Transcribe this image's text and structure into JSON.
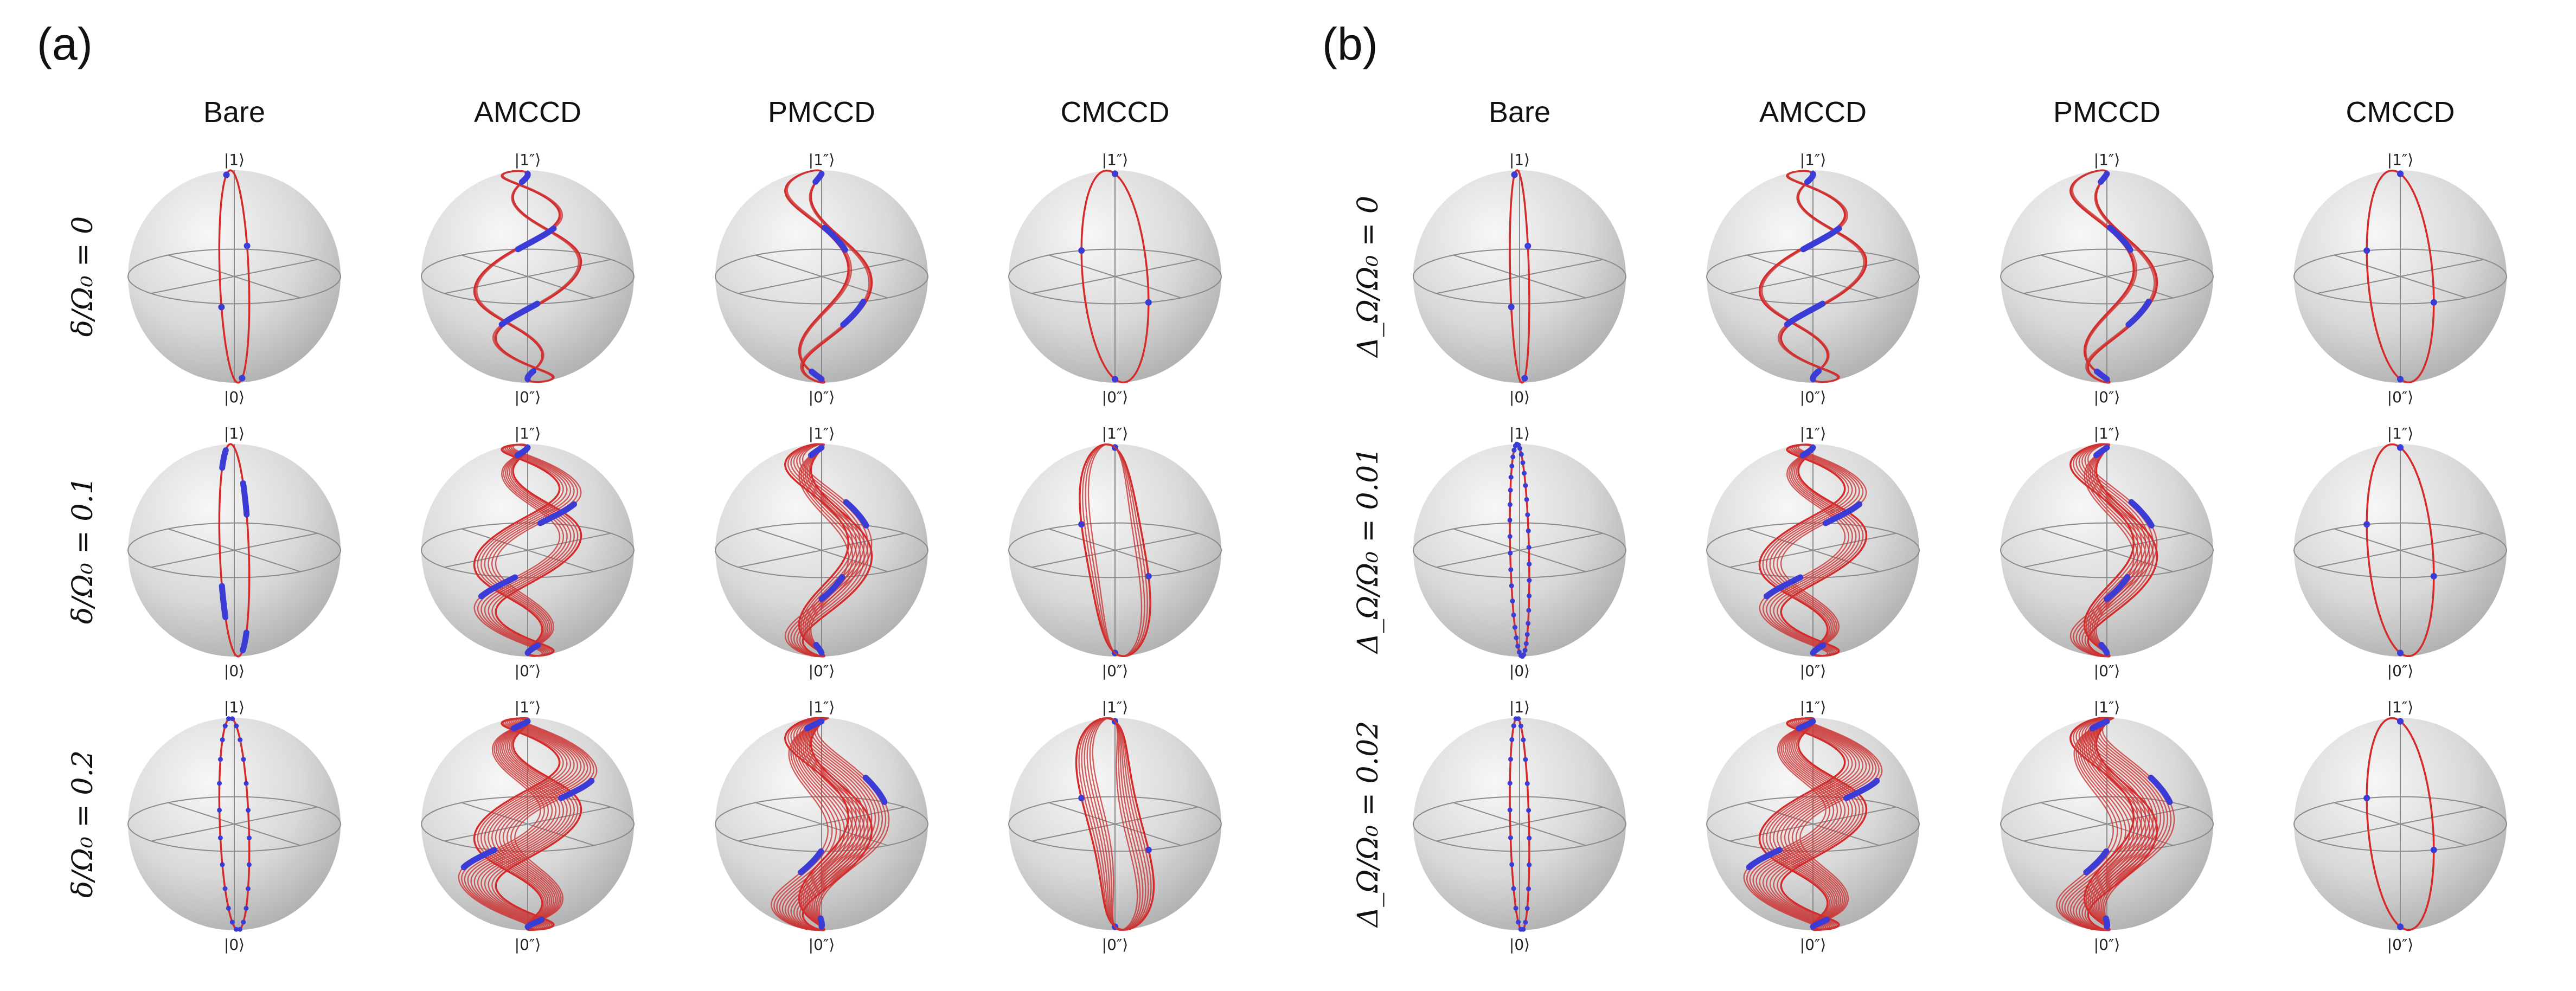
{
  "panels": [
    {
      "label": "(a)",
      "columns": [
        "Bare",
        "AMCCD",
        "PMCCD",
        "CMCCD"
      ],
      "rows": [
        "δ/Ω₀ = 0",
        "δ/Ω₀ = 0.1",
        "δ/Ω₀ = 0.2"
      ]
    },
    {
      "label": "(b)",
      "columns": [
        "Bare",
        "AMCCD",
        "PMCCD",
        "CMCCD"
      ],
      "rows": [
        "Δ_Ω/Ω₀ = 0",
        "Δ_Ω/Ω₀ = 0.01",
        "Δ_Ω/Ω₀ = 0.02"
      ]
    }
  ],
  "kets": {
    "bare_top": "|1⟩",
    "bare_bottom": "|0⟩",
    "dressed_top": "|1″⟩",
    "dressed_bottom": "|0″⟩"
  },
  "colors": {
    "trajectory": "#d62a2a",
    "markers": "#3b3bd6",
    "sphere_light": "#f5f5f5",
    "sphere_dark": "#a9a9a9"
  }
}
